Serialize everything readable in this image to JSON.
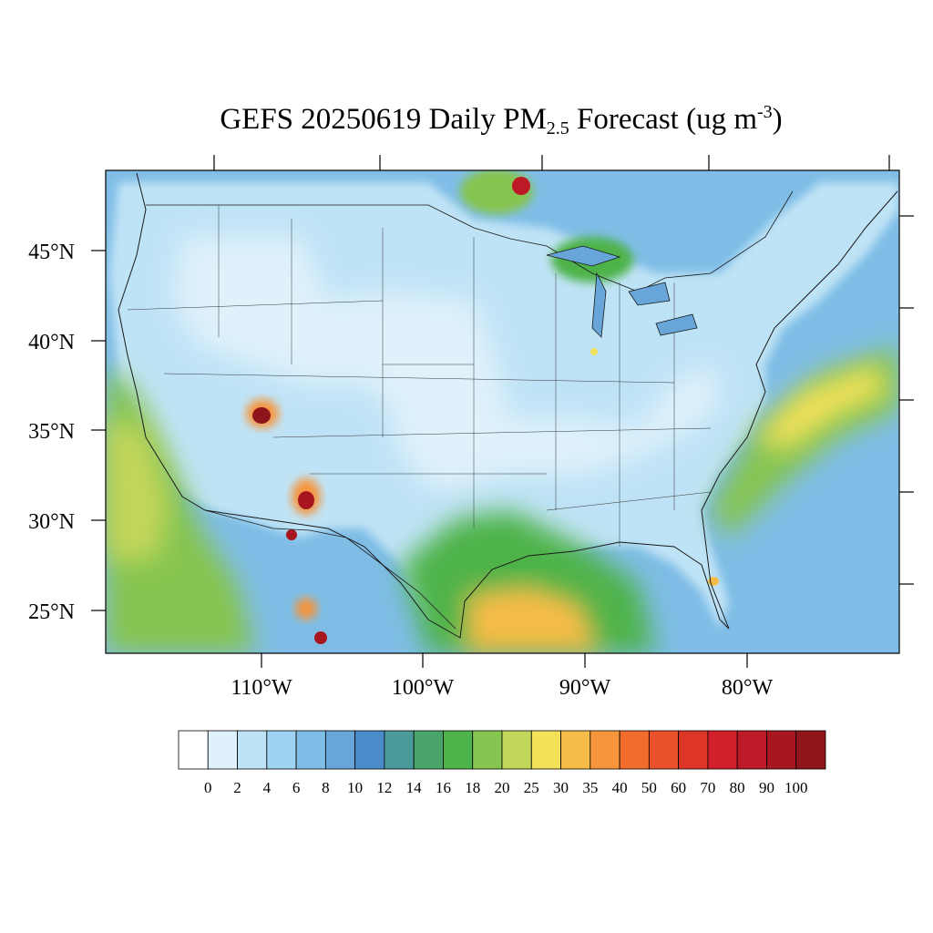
{
  "title": {
    "prefix": "GEFS 20250619 Daily PM",
    "subscript": "2.5",
    "middle": " Forecast (ug m",
    "superscript": "-3",
    "suffix": ")"
  },
  "lat_labels": [
    "45°N",
    "40°N",
    "35°N",
    "30°N",
    "25°N"
  ],
  "lon_labels": [
    "110°W",
    "100°W",
    "90°W",
    "80°W"
  ],
  "colorbar": {
    "labels": [
      "0",
      "2",
      "4",
      "6",
      "8",
      "10",
      "12",
      "14",
      "16",
      "18",
      "20",
      "25",
      "30",
      "35",
      "40",
      "50",
      "60",
      "70",
      "80",
      "90",
      "100"
    ],
    "colors": [
      "#ffffff",
      "#dff1fb",
      "#bfe3f6",
      "#9ed3f2",
      "#7fbde6",
      "#68a6d9",
      "#4a8cc9",
      "#4b9a9c",
      "#4aa56a",
      "#4db34a",
      "#86c54f",
      "#c2d65a",
      "#f4e15a",
      "#f6bc47",
      "#f6953c",
      "#f26c2c",
      "#e9512c",
      "#dd3629",
      "#d1202b",
      "#bb1a26",
      "#a8171f",
      "#8e1519"
    ]
  },
  "map": {
    "ocean_color": "#68a6d9",
    "land_color": "#bfe3f6",
    "border_color": "#1a1a1a"
  }
}
